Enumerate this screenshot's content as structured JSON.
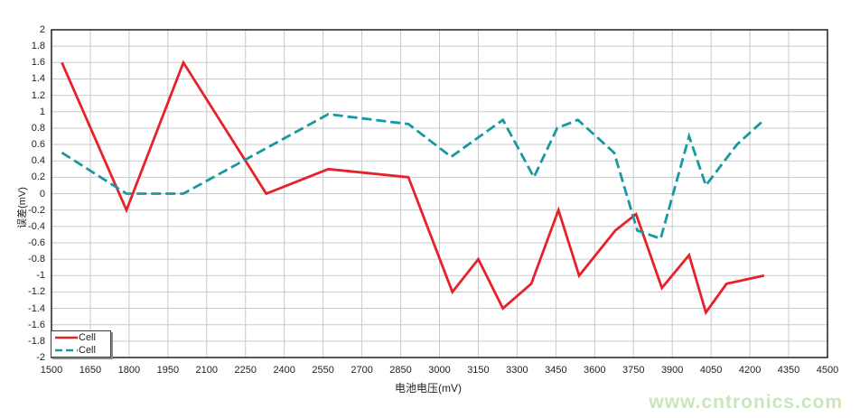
{
  "chart": {
    "y_axis_title": "误差(mV)",
    "x_axis_title": "电池电压(mV)",
    "watermark": "www.cntronics.com",
    "watermark_color": "#c9e7ba",
    "grid_color": "#c9c9c9",
    "border_color": "#1f1f1f",
    "legend": [
      {
        "label": "Cell",
        "color": "#e62129",
        "line_style": "solid"
      },
      {
        "label": "Cell",
        "color": "#1699a2",
        "line_style": "dashed"
      }
    ]
  },
  "chart_data": {
    "type": "line",
    "title": "",
    "xlabel": "电池电压(mV)",
    "ylabel": "误差(mV)",
    "xlim": [
      1500,
      4500
    ],
    "ylim": [
      -2,
      2
    ],
    "grid": true,
    "legend_position": "bottom-left",
    "x_ticks": [
      "1500",
      "1650",
      "1800",
      "1950",
      "2100",
      "2250",
      "2400",
      "2550",
      "2700",
      "2850",
      "3000",
      "3150",
      "3300",
      "3450",
      "3600",
      "3750",
      "3900",
      "4050",
      "4200",
      "4350",
      "4500"
    ],
    "y_ticks": [
      "2",
      "1.8",
      "1.6",
      "1.4",
      "1.2",
      "1",
      "0.8",
      "0.6",
      "0.4",
      "0.2",
      "0",
      "-0.2",
      "-0.4",
      "-0.6",
      "-0.8",
      "-1",
      "-1.2",
      "-1.4",
      "-1.6",
      "-1.8",
      "-2"
    ],
    "series": [
      {
        "name": "Cell",
        "color": "#e62129",
        "line_style": "solid",
        "points": [
          [
            1540,
            1.6
          ],
          [
            1790,
            -0.2
          ],
          [
            2010,
            1.6
          ],
          [
            2330,
            0.0
          ],
          [
            2570,
            0.3
          ],
          [
            2880,
            0.2
          ],
          [
            3050,
            -1.2
          ],
          [
            3150,
            -0.8
          ],
          [
            3245,
            -1.4
          ],
          [
            3355,
            -1.1
          ],
          [
            3460,
            -0.2
          ],
          [
            3540,
            -1.0
          ],
          [
            3680,
            -0.45
          ],
          [
            3760,
            -0.25
          ],
          [
            3860,
            -1.15
          ],
          [
            3965,
            -0.75
          ],
          [
            4030,
            -1.45
          ],
          [
            4110,
            -1.1
          ],
          [
            4255,
            -1.0
          ]
        ]
      },
      {
        "name": "Cell",
        "color": "#1699a2",
        "line_style": "dashed",
        "points": [
          [
            1540,
            0.5
          ],
          [
            1790,
            0.0
          ],
          [
            2010,
            0.0
          ],
          [
            2570,
            0.97
          ],
          [
            2880,
            0.85
          ],
          [
            3045,
            0.45
          ],
          [
            3245,
            0.9
          ],
          [
            3365,
            0.2
          ],
          [
            3455,
            0.8
          ],
          [
            3535,
            0.9
          ],
          [
            3675,
            0.5
          ],
          [
            3765,
            -0.45
          ],
          [
            3855,
            -0.55
          ],
          [
            3965,
            0.7
          ],
          [
            4030,
            0.1
          ],
          [
            4150,
            0.6
          ],
          [
            4255,
            0.9
          ]
        ]
      }
    ]
  }
}
